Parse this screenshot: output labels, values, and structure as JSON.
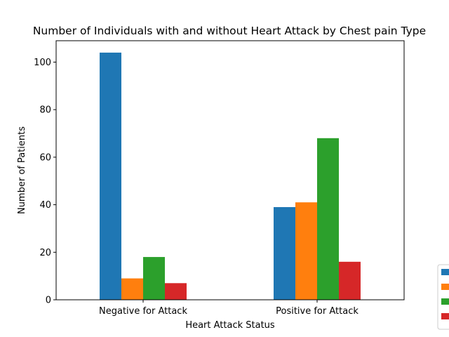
{
  "chart_data": {
    "type": "bar",
    "title": "Number of Individuals with and without Heart Attack by Chest pain Type",
    "xlabel": "Heart Attack Status",
    "ylabel": "Number of Patients",
    "categories": [
      "Negative for Attack",
      "Positive for Attack"
    ],
    "ylim": [
      0,
      109
    ],
    "yticks": [
      0,
      20,
      40,
      60,
      80,
      100
    ],
    "grid": false,
    "legend_position": "bottom-right",
    "series": [
      {
        "values": [
          104,
          39
        ],
        "color": "#1f77b4"
      },
      {
        "values": [
          9,
          41
        ],
        "color": "#ff7f0e"
      },
      {
        "values": [
          18,
          68
        ],
        "color": "#2ca02c"
      },
      {
        "values": [
          7,
          16
        ],
        "color": "#d62728"
      }
    ]
  }
}
